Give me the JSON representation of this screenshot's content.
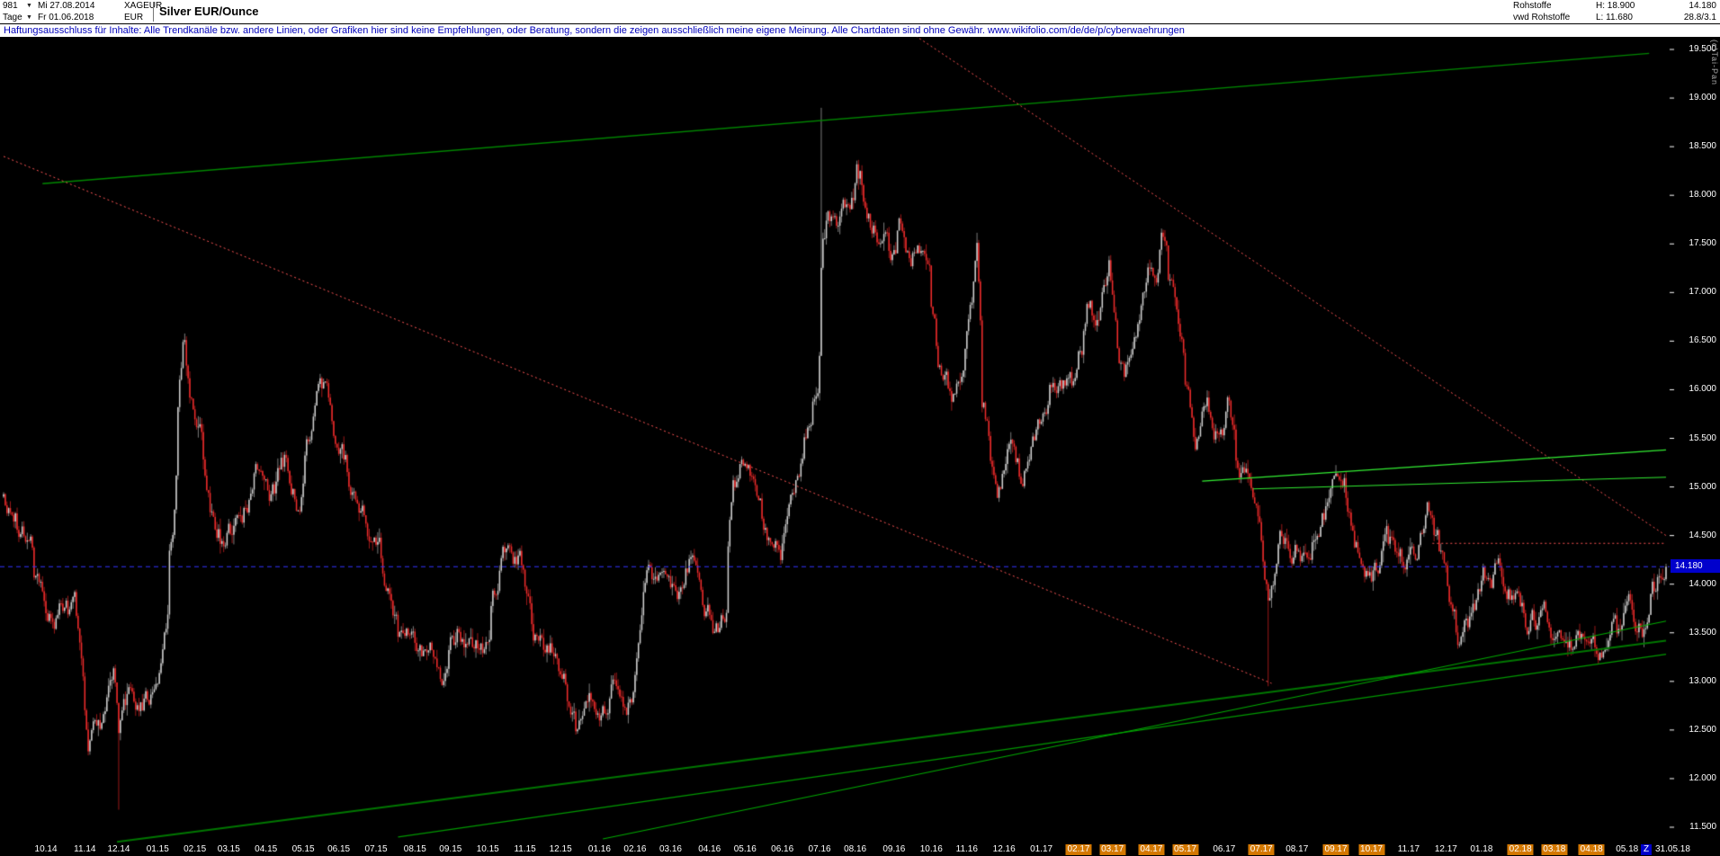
{
  "header": {
    "bars_count": "981",
    "dropdown_icon": "▼",
    "date_from_label": "Mi 27.08.2014",
    "symbol": "XAGEUR",
    "title": "Silver EUR/Ounce",
    "period": "Tage",
    "date_to_label": "Fr 01.06.2018",
    "currency": "EUR",
    "group_line1": "Rohstoffe",
    "group_line2": "vwd Rohstoffe",
    "high_label": "H: 18.900",
    "low_label": "L: 11.680",
    "last_price": "14.180",
    "extra_info": "28.8/3.1",
    "copyright": "(c)Tai-Pan"
  },
  "disclaimer": "Haftungsausschluss für Inhalte: Alle Trendkanäle bzw. andere Linien, oder Grafiken hier sind keine Empfehlungen, oder Beratung, sondern die zeigen ausschließlich meine eigene Meinung. Alle Chartdaten sind ohne Gewähr.  www.wikifolio.com/de/de/p/cyberwaehrungen",
  "colors": {
    "background": "#000000",
    "candle_up_body": "#d0d0d0",
    "candle_up_wick": "#9a9a9a",
    "candle_down_body": "#ee2c2c",
    "candle_down_wick": "#c22020",
    "axis_text": "#ffffff",
    "price_marker_bg": "#0000cc",
    "highlight_bg": "#d47800",
    "disclaimer_text": "#0000bb"
  },
  "chart_data": {
    "type": "candlestick",
    "title": "Silver EUR/Ounce",
    "timeframe": "Tage (daily)",
    "date_range": [
      "2014-08-27",
      "2018-06-01"
    ],
    "period_high": 18.9,
    "period_low": 11.68,
    "last_price": 14.18,
    "y_ticks": [
      {
        "value": 19.5,
        "label": "19.500"
      },
      {
        "value": 19.0,
        "label": "19.000"
      },
      {
        "value": 18.5,
        "label": "18.500"
      },
      {
        "value": 18.0,
        "label": "18.000"
      },
      {
        "value": 17.5,
        "label": "17.500"
      },
      {
        "value": 17.0,
        "label": "17.000"
      },
      {
        "value": 16.5,
        "label": "16.500"
      },
      {
        "value": 16.0,
        "label": "16.000"
      },
      {
        "value": 15.5,
        "label": "15.500"
      },
      {
        "value": 15.0,
        "label": "15.000"
      },
      {
        "value": 14.5,
        "label": "14.500"
      },
      {
        "value": 14.0,
        "label": "14.000"
      },
      {
        "value": 13.5,
        "label": "13.500"
      },
      {
        "value": 13.0,
        "label": "13.000"
      },
      {
        "value": 12.5,
        "label": "12.500"
      },
      {
        "value": 12.0,
        "label": "12.000"
      },
      {
        "value": 11.5,
        "label": "11.500"
      }
    ],
    "anchors": [
      [
        "2014-08-27",
        14.9
      ],
      [
        "2014-09-05",
        14.7
      ],
      [
        "2014-09-16",
        14.35
      ],
      [
        "2014-09-30",
        13.55
      ],
      [
        "2014-10-08",
        13.3
      ],
      [
        "2014-10-17",
        13.6
      ],
      [
        "2014-10-24",
        13.45
      ],
      [
        "2014-10-31",
        12.9
      ],
      [
        "2014-11-05",
        12.3
      ],
      [
        "2014-11-12",
        12.55
      ],
      [
        "2014-11-21",
        12.8
      ],
      [
        "2014-11-26",
        13.05
      ],
      [
        "2014-12-01",
        12.5
      ],
      [
        "2014-12-09",
        12.95
      ],
      [
        "2014-12-16",
        12.55
      ],
      [
        "2014-12-31",
        12.9
      ],
      [
        "2015-01-08",
        13.4
      ],
      [
        "2015-01-15",
        14.75
      ],
      [
        "2015-01-22",
        16.45
      ],
      [
        "2015-01-29",
        15.9
      ],
      [
        "2015-02-06",
        15.35
      ],
      [
        "2015-02-13",
        14.8
      ],
      [
        "2015-02-25",
        14.6
      ],
      [
        "2015-03-06",
        14.55
      ],
      [
        "2015-03-17",
        14.95
      ],
      [
        "2015-03-26",
        15.4
      ],
      [
        "2015-04-08",
        15.1
      ],
      [
        "2015-04-17",
        15.3
      ],
      [
        "2015-04-28",
        15.05
      ],
      [
        "2015-05-07",
        15.6
      ],
      [
        "2015-05-14",
        15.85
      ],
      [
        "2015-05-26",
        15.5
      ],
      [
        "2015-06-05",
        15.05
      ],
      [
        "2015-06-16",
        14.7
      ],
      [
        "2015-06-30",
        14.35
      ],
      [
        "2015-07-08",
        14.05
      ],
      [
        "2015-07-20",
        13.4
      ],
      [
        "2015-07-28",
        13.55
      ],
      [
        "2015-08-07",
        13.25
      ],
      [
        "2015-08-18",
        13.1
      ],
      [
        "2015-08-26",
        12.95
      ],
      [
        "2015-09-04",
        13.3
      ],
      [
        "2015-09-15",
        13.45
      ],
      [
        "2015-09-29",
        13.05
      ],
      [
        "2015-10-09",
        13.85
      ],
      [
        "2015-10-16",
        14.1
      ],
      [
        "2015-10-28",
        14.15
      ],
      [
        "2015-11-06",
        13.4
      ],
      [
        "2015-11-17",
        13.15
      ],
      [
        "2015-11-27",
        13.2
      ],
      [
        "2015-12-04",
        12.95
      ],
      [
        "2015-12-14",
        12.6
      ],
      [
        "2015-12-31",
        12.7
      ],
      [
        "2016-01-08",
        12.9
      ],
      [
        "2016-01-20",
        13.1
      ],
      [
        "2016-01-29",
        13.0
      ],
      [
        "2016-02-05",
        13.45
      ],
      [
        "2016-02-11",
        14.0
      ],
      [
        "2016-02-23",
        13.75
      ],
      [
        "2016-03-10",
        13.9
      ],
      [
        "2016-03-18",
        14.15
      ],
      [
        "2016-03-31",
        13.7
      ],
      [
        "2016-04-08",
        13.45
      ],
      [
        "2016-04-14",
        13.6
      ],
      [
        "2016-04-21",
        14.95
      ],
      [
        "2016-04-29",
        15.25
      ],
      [
        "2016-05-10",
        15.1
      ],
      [
        "2016-05-18",
        14.75
      ],
      [
        "2016-05-31",
        14.4
      ],
      [
        "2016-06-08",
        14.75
      ],
      [
        "2016-06-16",
        15.4
      ],
      [
        "2016-06-24",
        16.1
      ],
      [
        "2016-06-30",
        16.65
      ],
      [
        "2016-07-05",
        18.15
      ],
      [
        "2016-07-08",
        18.35
      ],
      [
        "2016-07-13",
        17.95
      ],
      [
        "2016-07-21",
        17.85
      ],
      [
        "2016-07-28",
        18.0
      ],
      [
        "2016-08-02",
        18.45
      ],
      [
        "2016-08-10",
        18.1
      ],
      [
        "2016-08-18",
        17.75
      ],
      [
        "2016-08-31",
        17.2
      ],
      [
        "2016-09-07",
        17.65
      ],
      [
        "2016-09-14",
        17.05
      ],
      [
        "2016-09-22",
        17.35
      ],
      [
        "2016-09-30",
        17.15
      ],
      [
        "2016-10-04",
        16.45
      ],
      [
        "2016-10-07",
        16.05
      ],
      [
        "2016-10-14",
        15.95
      ],
      [
        "2016-10-21",
        15.85
      ],
      [
        "2016-10-28",
        16.0
      ],
      [
        "2016-11-03",
        16.7
      ],
      [
        "2016-11-09",
        17.35
      ],
      [
        "2016-11-14",
        15.95
      ],
      [
        "2016-11-25",
        15.3
      ],
      [
        "2016-12-09",
        15.95
      ],
      [
        "2016-12-15",
        15.35
      ],
      [
        "2016-12-30",
        15.45
      ],
      [
        "2017-01-06",
        15.6
      ],
      [
        "2017-01-13",
        16.0
      ],
      [
        "2017-01-24",
        16.15
      ],
      [
        "2017-01-31",
        16.0
      ],
      [
        "2017-02-08",
        16.75
      ],
      [
        "2017-02-16",
        16.7
      ],
      [
        "2017-02-27",
        17.2
      ],
      [
        "2017-03-03",
        16.65
      ],
      [
        "2017-03-10",
        16.25
      ],
      [
        "2017-03-21",
        16.4
      ],
      [
        "2017-03-30",
        17.05
      ],
      [
        "2017-04-06",
        16.9
      ],
      [
        "2017-04-13",
        17.5
      ],
      [
        "2017-04-20",
        16.9
      ],
      [
        "2017-04-27",
        16.55
      ],
      [
        "2017-05-05",
        15.55
      ],
      [
        "2017-05-09",
        15.4
      ],
      [
        "2017-05-17",
        15.65
      ],
      [
        "2017-05-31",
        15.5
      ],
      [
        "2017-06-06",
        15.85
      ],
      [
        "2017-06-14",
        15.3
      ],
      [
        "2017-06-22",
        15.05
      ],
      [
        "2017-06-30",
        14.65
      ],
      [
        "2017-07-07",
        13.95
      ],
      [
        "2017-07-11",
        14.05
      ],
      [
        "2017-07-18",
        14.45
      ],
      [
        "2017-07-26",
        14.25
      ],
      [
        "2017-08-04",
        14.3
      ],
      [
        "2017-08-11",
        14.65
      ],
      [
        "2017-08-29",
        14.9
      ],
      [
        "2017-09-08",
        15.15
      ],
      [
        "2017-09-15",
        14.85
      ],
      [
        "2017-09-21",
        14.45
      ],
      [
        "2017-09-29",
        14.4
      ],
      [
        "2017-10-06",
        14.35
      ],
      [
        "2017-10-13",
        14.65
      ],
      [
        "2017-10-20",
        14.45
      ],
      [
        "2017-10-27",
        14.25
      ],
      [
        "2017-11-03",
        14.45
      ],
      [
        "2017-11-10",
        14.5
      ],
      [
        "2017-11-17",
        14.7
      ],
      [
        "2017-11-24",
        14.35
      ],
      [
        "2017-11-30",
        14.05
      ],
      [
        "2017-12-06",
        13.75
      ],
      [
        "2017-12-12",
        13.4
      ],
      [
        "2017-12-20",
        13.65
      ],
      [
        "2017-12-29",
        13.95
      ],
      [
        "2018-01-05",
        14.1
      ],
      [
        "2018-01-15",
        14.3
      ],
      [
        "2018-01-25",
        14.15
      ],
      [
        "2018-01-31",
        14.0
      ],
      [
        "2018-02-08",
        13.5
      ],
      [
        "2018-02-16",
        13.65
      ],
      [
        "2018-02-23",
        13.55
      ],
      [
        "2018-03-02",
        13.4
      ],
      [
        "2018-03-09",
        13.3
      ],
      [
        "2018-03-16",
        13.2
      ],
      [
        "2018-03-23",
        13.35
      ],
      [
        "2018-03-29",
        13.25
      ],
      [
        "2018-04-06",
        13.35
      ],
      [
        "2018-04-13",
        13.55
      ],
      [
        "2018-04-19",
        13.9
      ],
      [
        "2018-04-26",
        13.6
      ],
      [
        "2018-05-04",
        13.8
      ],
      [
        "2018-05-11",
        13.6
      ],
      [
        "2018-05-15",
        13.45
      ],
      [
        "2018-05-22",
        13.95
      ],
      [
        "2018-05-29",
        14.1
      ],
      [
        "2018-06-01",
        14.18
      ]
    ],
    "events": [
      {
        "date": "2014-12-01",
        "kind": "low",
        "price": 11.68
      },
      {
        "date": "2016-07-04",
        "kind": "high",
        "price": 18.9
      },
      {
        "date": "2017-07-07",
        "kind": "low",
        "price": 12.95
      }
    ],
    "trendlines": [
      {
        "name": "upper-channel-green",
        "x1": "2014-09-29",
        "p1": 18.12,
        "x2": "2018-05-18",
        "p2": 19.46,
        "color": "#008800",
        "width": 1.4,
        "dash": []
      },
      {
        "name": "long-descending-red",
        "x1": "2014-08-27",
        "p1": 18.4,
        "x2": "2017-07-11",
        "p2": 12.98,
        "color": "#ff5555",
        "width": 1,
        "dash": [
          2,
          3
        ]
      },
      {
        "name": "upper-descending-red",
        "x1": "2016-07-26",
        "p1": 20.1,
        "x2": "2018-06-01",
        "p2": 14.5,
        "color": "#ff5555",
        "width": 1,
        "dash": [
          2,
          3
        ]
      },
      {
        "name": "horizontal-resistance-red",
        "x1": "2017-11-21",
        "p1": 14.42,
        "x2": "2018-06-01",
        "p2": 14.42,
        "color": "#ff5555",
        "width": 1,
        "dash": [
          2,
          3
        ]
      },
      {
        "name": "support-main-green",
        "x1": "2014-11-28",
        "p1": 11.35,
        "x2": "2018-06-01",
        "p2": 13.42,
        "color": "#007700",
        "width": 2,
        "dash": []
      },
      {
        "name": "support-secondary-green",
        "x1": "2015-07-20",
        "p1": 11.4,
        "x2": "2018-06-01",
        "p2": 13.28,
        "color": "#009900",
        "width": 1.3,
        "dash": []
      },
      {
        "name": "support-third-green",
        "x1": "2016-01-05",
        "p1": 11.38,
        "x2": "2018-06-01",
        "p2": 13.62,
        "color": "#00aa00",
        "width": 1.2,
        "dash": []
      },
      {
        "name": "minor-channel-top-green",
        "x1": "2017-05-15",
        "p1": 15.06,
        "x2": "2018-06-01",
        "p2": 15.38,
        "color": "#33ee33",
        "width": 1.3,
        "dash": []
      },
      {
        "name": "minor-channel-bottom-green",
        "x1": "2017-06-26",
        "p1": 14.98,
        "x2": "2018-06-01",
        "p2": 15.1,
        "color": "#33ee33",
        "width": 1,
        "dash": []
      }
    ],
    "hline": {
      "price": 14.18,
      "color": "#3333ff",
      "dash": [
        5,
        4
      ],
      "label": "14.180"
    },
    "x_axis": {
      "month_labels": [
        "10.14",
        "11.14",
        "12.14",
        "01.15",
        "02.15",
        "03.15",
        "04.15",
        "05.15",
        "06.15",
        "07.15",
        "08.15",
        "09.15",
        "10.15",
        "11.15",
        "12.15",
        "01.16",
        "02.16",
        "03.16",
        "04.16",
        "05.16",
        "06.16",
        "07.16",
        "08.16",
        "09.16",
        "10.16",
        "11.16",
        "12.16",
        "01.17",
        "02.17",
        "03.17",
        "04.17",
        "05.17",
        "06.17",
        "07.17",
        "08.17",
        "09.17",
        "10.17",
        "11.17",
        "12.17",
        "01.18",
        "02.18",
        "03.18",
        "04.18",
        "05.18"
      ],
      "highlighted_months": [
        "02.17",
        "03.17",
        "04.17",
        "05.17",
        "07.17",
        "09.17",
        "10.17",
        "02.18",
        "03.18",
        "04.18"
      ],
      "end_marker": "Z",
      "end_date": "31.05.18"
    }
  }
}
